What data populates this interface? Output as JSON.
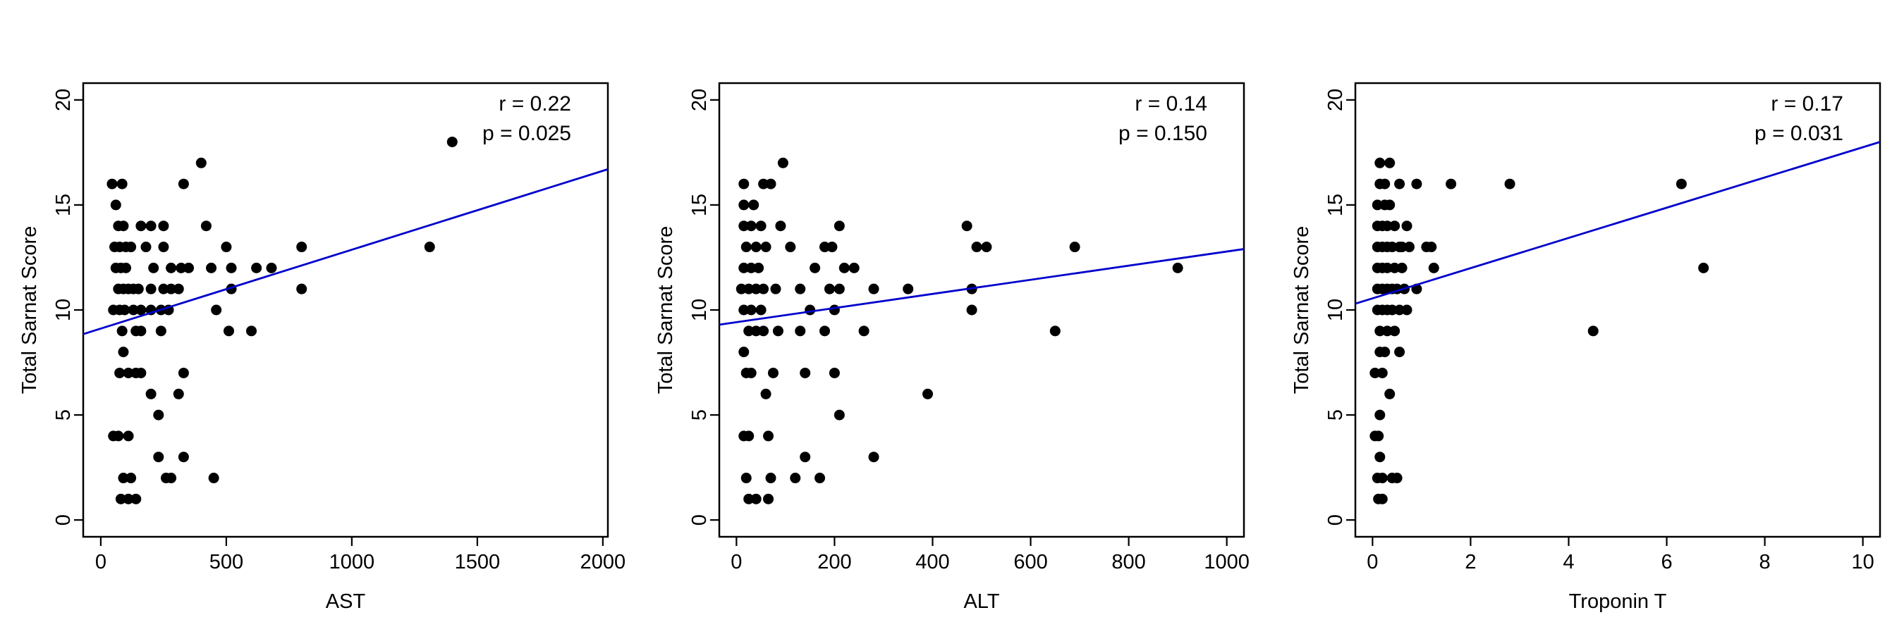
{
  "chart_data": [
    {
      "type": "scatter",
      "xlabel": "AST",
      "ylabel": "Total Sarnat Score",
      "xlim": [
        -70,
        2020
      ],
      "ylim": [
        -0.8,
        20.8
      ],
      "xticks": [
        0,
        500,
        1000,
        1500,
        2000
      ],
      "yticks": [
        0,
        5,
        10,
        15,
        20
      ],
      "annotations": [
        "r = 0.22",
        "p = 0.025"
      ],
      "fit_line": {
        "x": [
          -70,
          2020
        ],
        "y": [
          8.85,
          16.7
        ],
        "color": "#0000cc"
      },
      "grid": false,
      "points": [
        [
          45,
          16
        ],
        [
          60,
          15
        ],
        [
          85,
          16
        ],
        [
          70,
          14
        ],
        [
          90,
          14
        ],
        [
          55,
          13
        ],
        [
          75,
          13
        ],
        [
          100,
          13
        ],
        [
          120,
          13
        ],
        [
          60,
          12
        ],
        [
          80,
          12
        ],
        [
          100,
          12
        ],
        [
          70,
          11
        ],
        [
          90,
          11
        ],
        [
          110,
          11
        ],
        [
          130,
          11
        ],
        [
          150,
          11
        ],
        [
          50,
          10
        ],
        [
          75,
          10
        ],
        [
          95,
          10
        ],
        [
          130,
          10
        ],
        [
          160,
          10
        ],
        [
          85,
          9
        ],
        [
          140,
          9
        ],
        [
          160,
          9
        ],
        [
          90,
          8
        ],
        [
          75,
          7
        ],
        [
          110,
          7
        ],
        [
          140,
          7
        ],
        [
          160,
          7
        ],
        [
          50,
          4
        ],
        [
          70,
          4
        ],
        [
          110,
          4
        ],
        [
          90,
          2
        ],
        [
          120,
          2
        ],
        [
          80,
          1
        ],
        [
          110,
          1
        ],
        [
          140,
          1
        ],
        [
          160,
          14
        ],
        [
          200,
          14
        ],
        [
          250,
          14
        ],
        [
          180,
          13
        ],
        [
          250,
          13
        ],
        [
          210,
          12
        ],
        [
          280,
          12
        ],
        [
          320,
          12
        ],
        [
          200,
          11
        ],
        [
          250,
          11
        ],
        [
          280,
          11
        ],
        [
          310,
          11
        ],
        [
          200,
          10
        ],
        [
          240,
          10
        ],
        [
          270,
          10
        ],
        [
          240,
          9
        ],
        [
          200,
          6
        ],
        [
          310,
          6
        ],
        [
          230,
          5
        ],
        [
          230,
          3
        ],
        [
          330,
          3
        ],
        [
          260,
          2
        ],
        [
          280,
          2
        ],
        [
          400,
          17
        ],
        [
          330,
          16
        ],
        [
          420,
          14
        ],
        [
          500,
          13
        ],
        [
          350,
          12
        ],
        [
          440,
          12
        ],
        [
          520,
          12
        ],
        [
          620,
          12
        ],
        [
          680,
          12
        ],
        [
          520,
          11
        ],
        [
          460,
          10
        ],
        [
          510,
          9
        ],
        [
          600,
          9
        ],
        [
          330,
          7
        ],
        [
          450,
          2
        ],
        [
          800,
          13
        ],
        [
          800,
          11
        ],
        [
          1310,
          13
        ],
        [
          1400,
          18
        ]
      ]
    },
    {
      "type": "scatter",
      "xlabel": "ALT",
      "ylabel": "Total Sarnat Score",
      "xlim": [
        -35,
        1035
      ],
      "ylim": [
        -0.8,
        20.8
      ],
      "xticks": [
        0,
        200,
        400,
        600,
        800,
        1000
      ],
      "yticks": [
        0,
        5,
        10,
        15,
        20
      ],
      "annotations": [
        "r = 0.14",
        "p = 0.150"
      ],
      "fit_line": {
        "x": [
          -35,
          1035
        ],
        "y": [
          9.3,
          12.9
        ],
        "color": "#0000cc"
      },
      "grid": false,
      "points": [
        [
          15,
          16
        ],
        [
          55,
          16
        ],
        [
          70,
          16
        ],
        [
          15,
          15
        ],
        [
          35,
          15
        ],
        [
          15,
          14
        ],
        [
          30,
          14
        ],
        [
          50,
          14
        ],
        [
          20,
          13
        ],
        [
          40,
          13
        ],
        [
          60,
          13
        ],
        [
          15,
          12
        ],
        [
          30,
          12
        ],
        [
          45,
          12
        ],
        [
          10,
          11
        ],
        [
          25,
          11
        ],
        [
          40,
          11
        ],
        [
          55,
          11
        ],
        [
          15,
          10
        ],
        [
          30,
          10
        ],
        [
          50,
          10
        ],
        [
          25,
          9
        ],
        [
          40,
          9
        ],
        [
          55,
          9
        ],
        [
          15,
          8
        ],
        [
          20,
          7
        ],
        [
          30,
          7
        ],
        [
          60,
          6
        ],
        [
          15,
          4
        ],
        [
          25,
          4
        ],
        [
          20,
          2
        ],
        [
          25,
          1
        ],
        [
          40,
          1
        ],
        [
          65,
          4
        ],
        [
          70,
          2
        ],
        [
          65,
          1
        ],
        [
          95,
          17
        ],
        [
          90,
          14
        ],
        [
          80,
          11
        ],
        [
          110,
          13
        ],
        [
          85,
          9
        ],
        [
          75,
          7
        ],
        [
          180,
          13
        ],
        [
          210,
          14
        ],
        [
          195,
          13
        ],
        [
          220,
          12
        ],
        [
          240,
          12
        ],
        [
          160,
          12
        ],
        [
          130,
          11
        ],
        [
          190,
          11
        ],
        [
          210,
          11
        ],
        [
          150,
          10
        ],
        [
          200,
          10
        ],
        [
          130,
          9
        ],
        [
          180,
          9
        ],
        [
          200,
          7
        ],
        [
          140,
          7
        ],
        [
          210,
          5
        ],
        [
          140,
          3
        ],
        [
          120,
          2
        ],
        [
          170,
          2
        ],
        [
          260,
          9
        ],
        [
          280,
          11
        ],
        [
          350,
          11
        ],
        [
          280,
          3
        ],
        [
          390,
          6
        ],
        [
          470,
          14
        ],
        [
          490,
          13
        ],
        [
          510,
          13
        ],
        [
          480,
          11
        ],
        [
          480,
          10
        ],
        [
          690,
          13
        ],
        [
          650,
          9
        ],
        [
          900,
          12
        ]
      ]
    },
    {
      "type": "scatter",
      "xlabel": "Troponin T",
      "ylabel": "Total Sarnat Score",
      "xlim": [
        -0.35,
        10.35
      ],
      "ylim": [
        -0.8,
        20.8
      ],
      "xticks": [
        0,
        2,
        4,
        6,
        8,
        10
      ],
      "yticks": [
        0,
        5,
        10,
        15,
        20
      ],
      "annotations": [
        "r = 0.17",
        "p = 0.031"
      ],
      "fit_line": {
        "x": [
          -0.35,
          10.35
        ],
        "y": [
          10.3,
          18.0
        ],
        "color": "#0000cc"
      },
      "grid": false,
      "points": [
        [
          0.15,
          17
        ],
        [
          0.35,
          17
        ],
        [
          0.15,
          16
        ],
        [
          0.25,
          16
        ],
        [
          0.1,
          15
        ],
        [
          0.25,
          15
        ],
        [
          0.35,
          15
        ],
        [
          0.1,
          14
        ],
        [
          0.2,
          14
        ],
        [
          0.3,
          14
        ],
        [
          0.45,
          14
        ],
        [
          0.1,
          13
        ],
        [
          0.2,
          13
        ],
        [
          0.3,
          13
        ],
        [
          0.4,
          13
        ],
        [
          0.55,
          13
        ],
        [
          0.1,
          12
        ],
        [
          0.2,
          12
        ],
        [
          0.3,
          12
        ],
        [
          0.45,
          12
        ],
        [
          0.6,
          12
        ],
        [
          0.1,
          11
        ],
        [
          0.2,
          11
        ],
        [
          0.3,
          11
        ],
        [
          0.4,
          11
        ],
        [
          0.5,
          11
        ],
        [
          0.65,
          11
        ],
        [
          0.1,
          10
        ],
        [
          0.2,
          10
        ],
        [
          0.3,
          10
        ],
        [
          0.4,
          10
        ],
        [
          0.55,
          10
        ],
        [
          0.7,
          10
        ],
        [
          0.15,
          9
        ],
        [
          0.3,
          9
        ],
        [
          0.45,
          9
        ],
        [
          0.15,
          8
        ],
        [
          0.25,
          8
        ],
        [
          0.05,
          7
        ],
        [
          0.2,
          7
        ],
        [
          0.35,
          6
        ],
        [
          0.15,
          5
        ],
        [
          0.05,
          4
        ],
        [
          0.12,
          4
        ],
        [
          0.15,
          3
        ],
        [
          0.1,
          2
        ],
        [
          0.2,
          2
        ],
        [
          0.4,
          2
        ],
        [
          0.5,
          2
        ],
        [
          0.12,
          1
        ],
        [
          0.2,
          1
        ],
        [
          0.55,
          16
        ],
        [
          0.7,
          14
        ],
        [
          0.55,
          8
        ],
        [
          0.6,
          13
        ],
        [
          0.75,
          13
        ],
        [
          0.9,
          16
        ],
        [
          0.9,
          11
        ],
        [
          1.1,
          13
        ],
        [
          1.2,
          13
        ],
        [
          1.25,
          12
        ],
        [
          1.6,
          16
        ],
        [
          2.8,
          16
        ],
        [
          4.5,
          9
        ],
        [
          6.3,
          16
        ],
        [
          6.75,
          12
        ]
      ]
    }
  ]
}
